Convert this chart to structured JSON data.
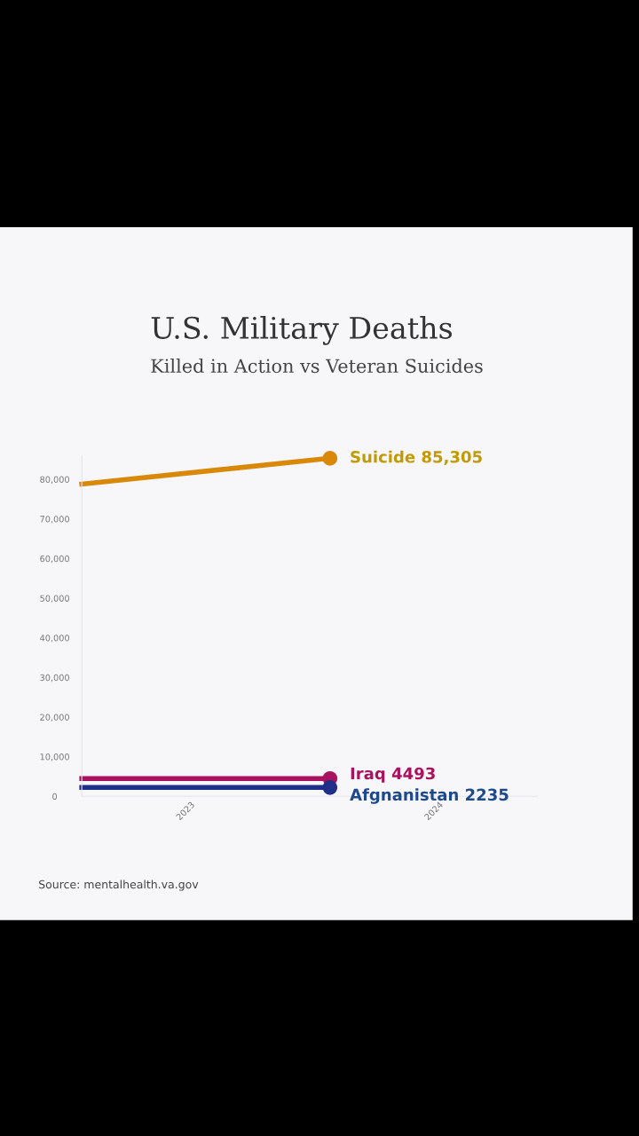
{
  "chart_data": {
    "type": "line",
    "title": "U.S. Military Deaths",
    "subtitle": "Killed in Action vs Veteran Suicides",
    "series": [
      {
        "color": "#d9890a",
        "x": [
          "2022-08",
          "2023-08"
        ],
        "values": [
          78800,
          85305
        ]
      },
      {
        "color": "#a8125f",
        "x": [
          "2022-08",
          "2023-08"
        ],
        "values": [
          4493,
          4493
        ]
      },
      {
        "color": "#1f2f8a",
        "x": [
          "2022-08",
          "2023-08"
        ],
        "values": [
          2235,
          2235
        ]
      }
    ],
    "annotations": [
      {
        "text": "Suicide 85,305",
        "x": "2023-08",
        "y": 85305
      },
      {
        "text": "Iraq 4493",
        "x": "2023-08",
        "y": 4493
      },
      {
        "text": "Afgnanistan 2235",
        "x": "2023-08",
        "y": 2235
      },
      "Source: mentalhealth.va.gov"
    ],
    "xlim": [
      "2022-08",
      "2024-06"
    ],
    "xticks": [
      {
        "value": "2023",
        "label": "2023"
      },
      {
        "value": "2024",
        "label": "2024"
      }
    ],
    "ylim": [
      0,
      86000
    ],
    "yticks": [
      {
        "value": 0,
        "label": "0"
      },
      {
        "value": 10000,
        "label": "10,000"
      },
      {
        "value": 20000,
        "label": "20,000"
      },
      {
        "value": 30000,
        "label": "30,000"
      },
      {
        "value": 40000,
        "label": "40,000"
      },
      {
        "value": 50000,
        "label": "50,000"
      },
      {
        "value": 60000,
        "label": "60,000"
      },
      {
        "value": 70000,
        "label": "70,000"
      },
      {
        "value": 80000,
        "label": "80,000"
      }
    ],
    "marker": "circle",
    "grid": false,
    "legend": false
  }
}
